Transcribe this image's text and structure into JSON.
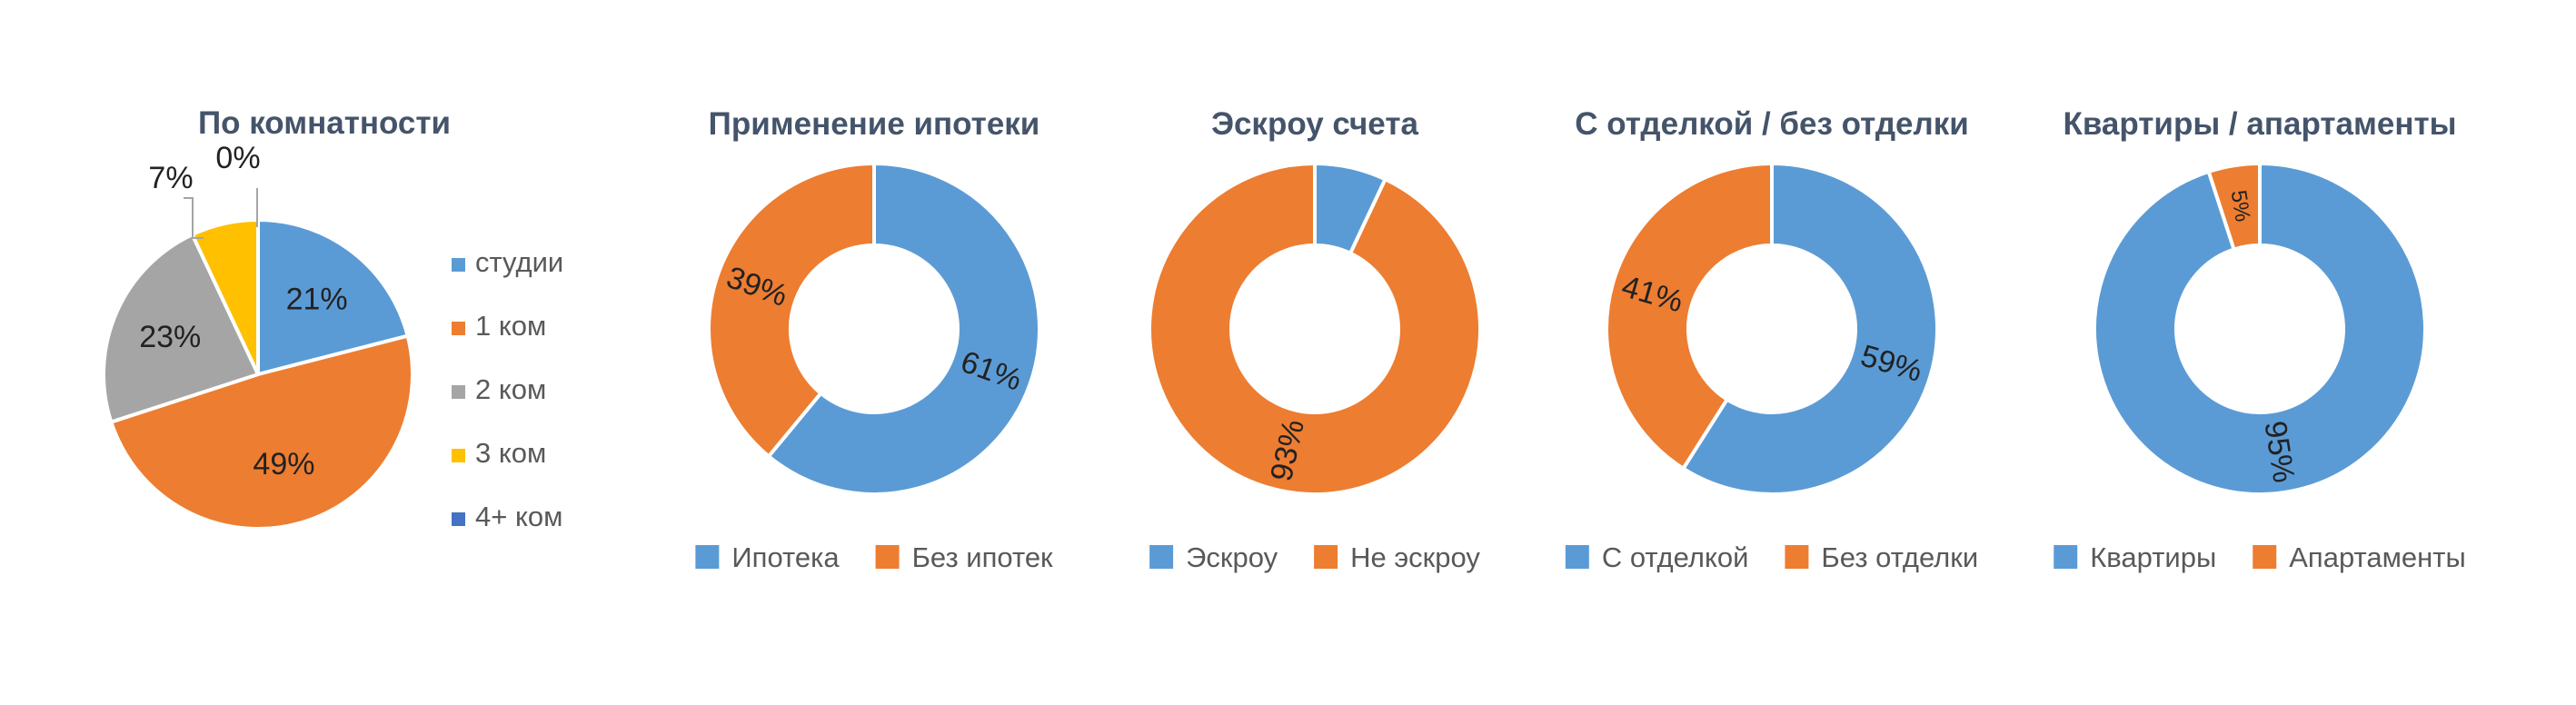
{
  "chart_data": [
    {
      "type": "pie",
      "title": "По комнатности",
      "categories": [
        "студии",
        "1 ком",
        "2 ком",
        "3 ком",
        "4+ ком"
      ],
      "values": [
        21,
        49,
        23,
        7,
        0
      ],
      "data_labels": [
        "21%",
        "49%",
        "23%",
        "7%",
        "0%"
      ],
      "colors": [
        "#5b9bd5",
        "#ed7d31",
        "#a5a5a5",
        "#ffc000",
        "#4472c4"
      ],
      "legend": "right"
    },
    {
      "type": "pie",
      "donut": true,
      "title": "Применение ипотеки",
      "categories": [
        "Ипотека",
        "Без ипотек"
      ],
      "values": [
        61,
        39
      ],
      "data_labels": [
        "61%",
        "39%"
      ],
      "colors": [
        "#5b9bd5",
        "#ed7d31"
      ],
      "legend": "bottom"
    },
    {
      "type": "pie",
      "donut": true,
      "title": "Эскроу счета",
      "categories": [
        "Эскроу",
        "Не эскроу"
      ],
      "values": [
        7,
        93
      ],
      "data_labels": [
        "",
        "93%"
      ],
      "colors": [
        "#5b9bd5",
        "#ed7d31"
      ],
      "legend": "bottom"
    },
    {
      "type": "pie",
      "donut": true,
      "title": "С отделкой / без отделки",
      "categories": [
        "С отделкой",
        "Без отделки"
      ],
      "values": [
        59,
        41
      ],
      "data_labels": [
        "59%",
        "41%"
      ],
      "colors": [
        "#5b9bd5",
        "#ed7d31"
      ],
      "legend": "bottom"
    },
    {
      "type": "pie",
      "donut": true,
      "title": "Квартиры / апартаменты",
      "categories": [
        "Квартиры",
        "Апартаменты"
      ],
      "values": [
        95,
        5
      ],
      "data_labels": [
        "95%",
        "5%"
      ],
      "colors": [
        "#5b9bd5",
        "#ed7d31"
      ],
      "legend": "bottom"
    }
  ]
}
